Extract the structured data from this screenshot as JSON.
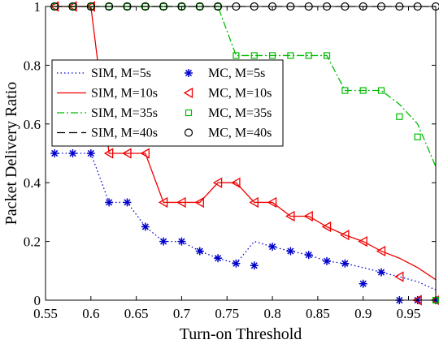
{
  "chart_data": {
    "type": "line",
    "title": "",
    "xlabel": "Turn-on Threshold",
    "ylabel": "Packet Delivery Ratio",
    "xlim": [
      0.55,
      0.98
    ],
    "ylim": [
      0,
      1
    ],
    "xticks": [
      0.55,
      0.6,
      0.65,
      0.7,
      0.75,
      0.8,
      0.85,
      0.9,
      0.95
    ],
    "yticks": [
      0,
      0.2,
      0.4,
      0.6,
      0.8,
      1
    ],
    "xtick_labels": [
      "0.55",
      "0.6",
      "0.65",
      "0.7",
      "0.75",
      "0.8",
      "0.85",
      "0.9",
      "0.95"
    ],
    "ytick_labels": [
      "0",
      "0.2",
      "0.4",
      "0.6",
      "0.8",
      "1"
    ],
    "grid": false,
    "legend_position": "upper-left",
    "series": [
      {
        "name": "SIM, M=5s",
        "kind": "sim",
        "color": "#0000cc",
        "dash": "dotted",
        "x": [
          0.56,
          0.58,
          0.6,
          0.62,
          0.64,
          0.66,
          0.68,
          0.7,
          0.72,
          0.74,
          0.76,
          0.78,
          0.8,
          0.82,
          0.84,
          0.86,
          0.88,
          0.9,
          0.92,
          0.94,
          0.96,
          0.98
        ],
        "y": [
          0.5,
          0.5,
          0.5,
          0.333,
          0.333,
          0.25,
          0.2,
          0.2,
          0.167,
          0.143,
          0.125,
          0.2,
          0.182,
          0.167,
          0.154,
          0.133,
          0.125,
          0.111,
          0.095,
          0.08,
          0.063,
          0.035
        ]
      },
      {
        "name": "SIM, M=10s",
        "kind": "sim",
        "color": "#ee0000",
        "dash": "solid",
        "x": [
          0.56,
          0.58,
          0.6,
          0.62,
          0.64,
          0.66,
          0.68,
          0.7,
          0.72,
          0.74,
          0.76,
          0.78,
          0.8,
          0.82,
          0.84,
          0.86,
          0.88,
          0.9,
          0.92,
          0.94,
          0.96,
          0.98
        ],
        "y": [
          1,
          1,
          1,
          0.5,
          0.5,
          0.5,
          0.333,
          0.333,
          0.333,
          0.4,
          0.4,
          0.333,
          0.333,
          0.286,
          0.286,
          0.25,
          0.222,
          0.2,
          0.167,
          0.143,
          0.111,
          0.07
        ]
      },
      {
        "name": "SIM, M=35s",
        "kind": "sim",
        "color": "#00bb00",
        "dash": "dashdot",
        "x": [
          0.56,
          0.58,
          0.6,
          0.62,
          0.64,
          0.66,
          0.68,
          0.7,
          0.72,
          0.74,
          0.76,
          0.78,
          0.8,
          0.82,
          0.84,
          0.86,
          0.88,
          0.9,
          0.92,
          0.94,
          0.96,
          0.98
        ],
        "y": [
          1,
          1,
          1,
          1,
          1,
          1,
          1,
          1,
          1,
          1,
          0.833,
          0.833,
          0.833,
          0.833,
          0.833,
          0.833,
          0.714,
          0.714,
          0.714,
          0.667,
          0.6,
          0.455
        ]
      },
      {
        "name": "SIM, M=40s",
        "kind": "sim",
        "color": "#000000",
        "dash": "dashed",
        "x": [
          0.56,
          0.98
        ],
        "y": [
          1,
          1
        ]
      },
      {
        "name": "MC, M=5s",
        "kind": "mc",
        "marker": "asterisk",
        "color": "#0000cc",
        "x": [
          0.56,
          0.58,
          0.6,
          0.62,
          0.64,
          0.66,
          0.68,
          0.7,
          0.72,
          0.74,
          0.76,
          0.78,
          0.8,
          0.82,
          0.84,
          0.86,
          0.88,
          0.9,
          0.92,
          0.94,
          0.96,
          0.98
        ],
        "y": [
          0.5,
          0.5,
          0.5,
          0.333,
          0.333,
          0.25,
          0.2,
          0.2,
          0.167,
          0.143,
          0.125,
          0.118,
          0.182,
          0.167,
          0.154,
          0.133,
          0.125,
          0.056,
          0.095,
          0,
          0,
          0
        ]
      },
      {
        "name": "MC, M=10s",
        "kind": "mc",
        "marker": "triangle-left",
        "color": "#ee0000",
        "x": [
          0.56,
          0.58,
          0.6,
          0.62,
          0.64,
          0.66,
          0.68,
          0.7,
          0.72,
          0.74,
          0.76,
          0.78,
          0.8,
          0.82,
          0.84,
          0.86,
          0.88,
          0.9,
          0.92,
          0.94,
          0.96,
          0.98
        ],
        "y": [
          1,
          1,
          1,
          0.5,
          0.5,
          0.5,
          0.333,
          0.333,
          0.333,
          0.4,
          0.4,
          0.333,
          0.333,
          0.286,
          0.286,
          0.25,
          0.222,
          0.2,
          0.167,
          0.08,
          0,
          0
        ]
      },
      {
        "name": "MC, M=35s",
        "kind": "mc",
        "marker": "square",
        "color": "#00bb00",
        "x": [
          0.56,
          0.58,
          0.6,
          0.62,
          0.64,
          0.66,
          0.68,
          0.7,
          0.72,
          0.74,
          0.76,
          0.78,
          0.8,
          0.82,
          0.84,
          0.86,
          0.88,
          0.9,
          0.92,
          0.94,
          0.96,
          0.98
        ],
        "y": [
          1,
          1,
          1,
          1,
          1,
          1,
          1,
          1,
          1,
          1,
          0.833,
          0.833,
          0.833,
          0.833,
          0.833,
          0.833,
          0.714,
          0.714,
          0.714,
          0.625,
          0.556,
          0
        ]
      },
      {
        "name": "MC, M=40s",
        "kind": "mc",
        "marker": "circle",
        "color": "#000000",
        "x": [
          0.56,
          0.58,
          0.6,
          0.62,
          0.64,
          0.66,
          0.68,
          0.7,
          0.72,
          0.74,
          0.76,
          0.78,
          0.8,
          0.82,
          0.84,
          0.86,
          0.88,
          0.9,
          0.92,
          0.94,
          0.96,
          0.98
        ],
        "y": [
          1,
          1,
          1,
          1,
          1,
          1,
          1,
          1,
          1,
          1,
          1,
          1,
          1,
          1,
          1,
          1,
          1,
          1,
          1,
          1,
          1,
          1
        ]
      }
    ],
    "legend_entries": [
      {
        "series": 0
      },
      {
        "series": 4
      },
      {
        "series": 1
      },
      {
        "series": 5
      },
      {
        "series": 2
      },
      {
        "series": 6
      },
      {
        "series": 3
      },
      {
        "series": 7
      }
    ]
  }
}
